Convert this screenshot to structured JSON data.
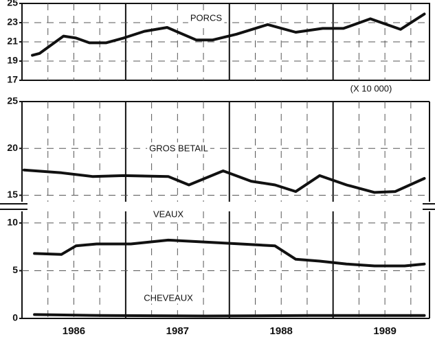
{
  "chart_data": [
    {
      "type": "line",
      "ylim": [
        17,
        25
      ],
      "yticks": [
        17,
        19,
        21,
        23,
        25
      ],
      "note": "(X 10 000)",
      "series": [
        {
          "name": "PORCS",
          "color": "#111111",
          "x": [
            1986.1,
            1986.17,
            1986.4,
            1986.52,
            1986.65,
            1986.81,
            1986.98,
            1987.18,
            1987.4,
            1987.68,
            1987.84,
            1988.07,
            1988.37,
            1988.64,
            1988.9,
            1989.1,
            1989.36,
            1989.65,
            1989.88
          ],
          "values": [
            19.6,
            19.8,
            21.6,
            21.4,
            20.9,
            20.9,
            21.4,
            22.1,
            22.5,
            21.2,
            21.2,
            21.8,
            22.8,
            22.0,
            22.4,
            22.4,
            23.4,
            22.3,
            23.9
          ]
        }
      ]
    },
    {
      "type": "line",
      "ylim": [
        14.6,
        25
      ],
      "yticks": [
        15,
        20,
        25
      ],
      "series": [
        {
          "name": "GROS BETAIL",
          "color": "#111111",
          "x": [
            1986.02,
            1986.38,
            1986.68,
            1986.98,
            1987.41,
            1987.61,
            1987.94,
            1988.21,
            1988.44,
            1988.64,
            1988.87,
            1989.13,
            1989.4,
            1989.6,
            1989.88
          ],
          "values": [
            17.7,
            17.4,
            17.0,
            17.1,
            17.0,
            16.1,
            17.6,
            16.5,
            16.1,
            15.4,
            17.1,
            16.1,
            15.3,
            15.4,
            16.8
          ]
        }
      ]
    },
    {
      "type": "line",
      "ylim": [
        0,
        11
      ],
      "yticks": [
        0,
        5,
        10
      ],
      "xlim": [
        1986,
        1989.93
      ],
      "xticks": [
        {
          "value": 1986,
          "label": "1986"
        },
        {
          "value": 1987,
          "label": "1987"
        },
        {
          "value": 1988,
          "label": "1988"
        },
        {
          "value": 1989,
          "label": "1989"
        }
      ],
      "series": [
        {
          "name": "VEAUX",
          "color": "#111111",
          "x": [
            1986.12,
            1986.38,
            1986.52,
            1986.72,
            1987.05,
            1987.41,
            1987.77,
            1988.11,
            1988.44,
            1988.64,
            1988.87,
            1989.13,
            1989.4,
            1989.69,
            1989.88
          ],
          "values": [
            6.8,
            6.7,
            7.6,
            7.8,
            7.8,
            8.2,
            8.0,
            7.8,
            7.6,
            6.2,
            6.0,
            5.7,
            5.5,
            5.5,
            5.7
          ]
        },
        {
          "name": "CHEVEAUX",
          "color": "#111111",
          "x": [
            1986.12,
            1986.78,
            1987.77,
            1988.77,
            1989.88
          ],
          "values": [
            0.4,
            0.3,
            0.25,
            0.3,
            0.3
          ]
        }
      ]
    }
  ]
}
